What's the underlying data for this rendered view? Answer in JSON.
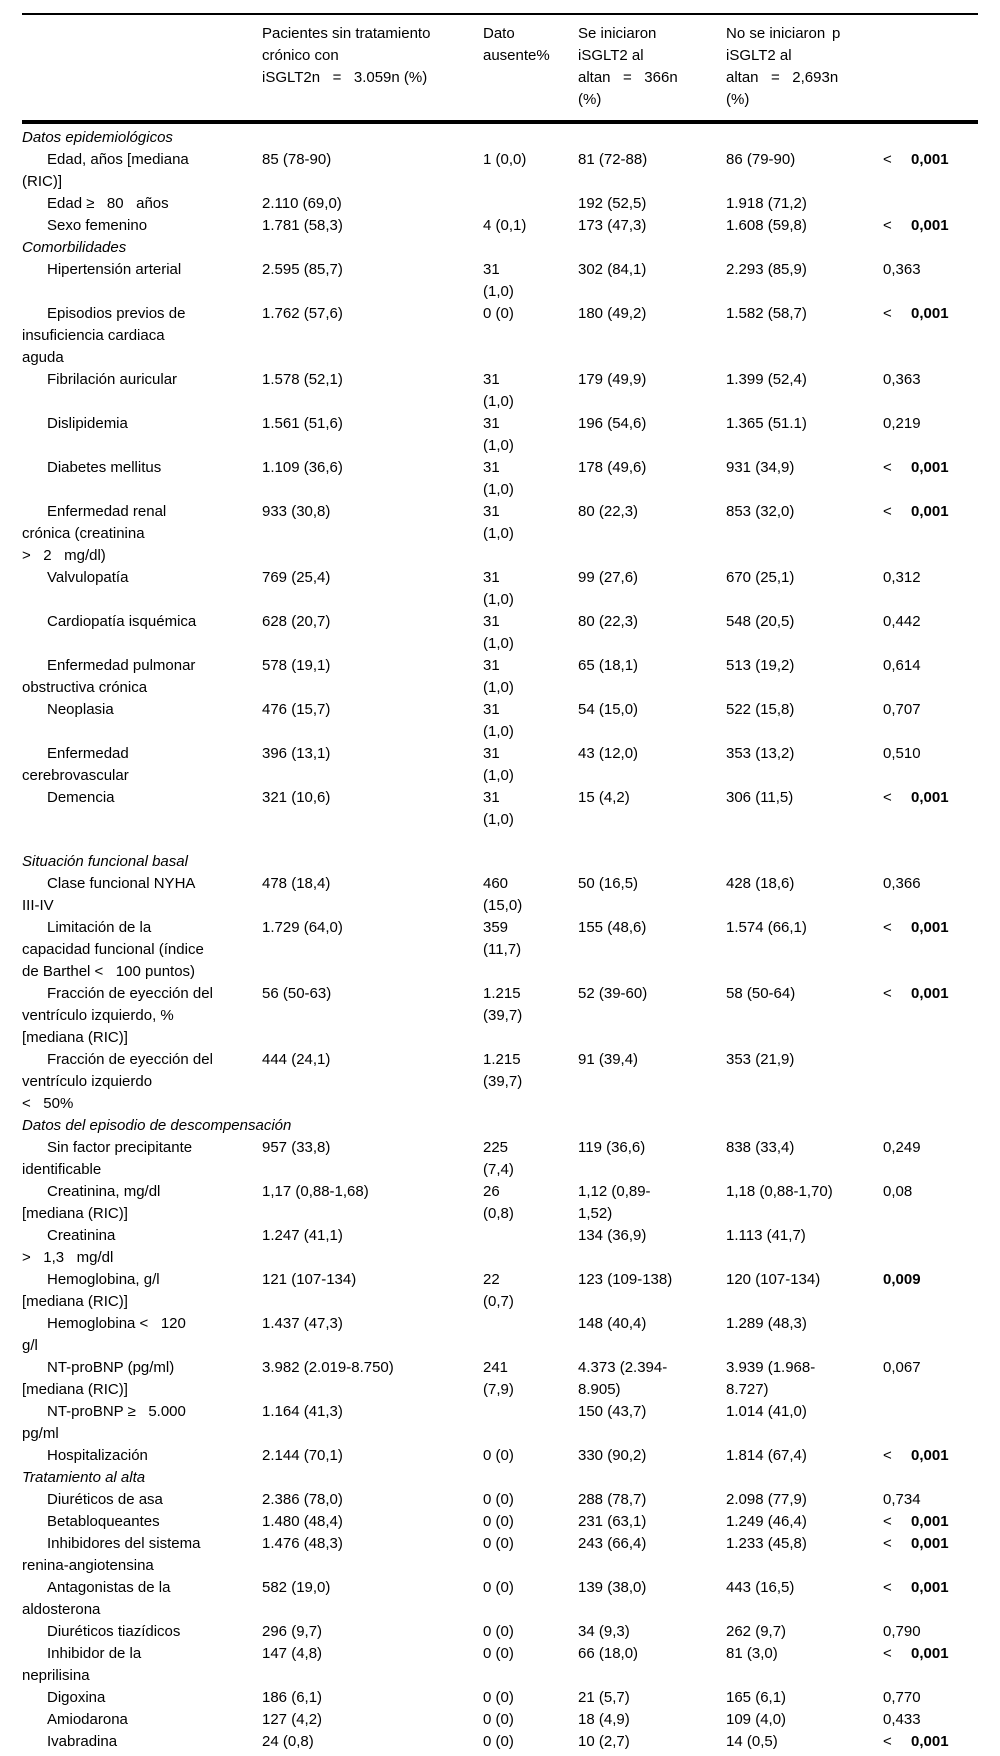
{
  "table": {
    "columns": [
      {
        "id": "label",
        "text": ""
      },
      {
        "id": "no-chronic-isglt2",
        "text": "Pacientes sin tratamiento\ncrónico con\niSGLT2n   =   3.059n (%)"
      },
      {
        "id": "missing-data",
        "text": "Dato\nausente%"
      },
      {
        "id": "initiated-isglt2",
        "text": "Se iniciaron\niSGLT2 al\naltan   =   366n\n(%)"
      },
      {
        "id": "not-initiated-isglt2",
        "text": "No se iniciaron\niSGLT2 al\naltan   =   2,693n\n(%)"
      },
      {
        "id": "p",
        "text": "p"
      }
    ],
    "rows": [
      {
        "type": "section",
        "label": "Datos epidemiológicos"
      },
      {
        "type": "data",
        "label": "Edad, años [mediana\n(RIC)]",
        "cells": [
          "85 (78-90)",
          "1 (0,0)",
          "81 (72-88)",
          "86 (79-90)"
        ],
        "p": {
          "prefix": "<",
          "value": "0,001",
          "bold": true
        }
      },
      {
        "type": "data",
        "label": "Edad ≥   80   años",
        "cells": [
          "2.110 (69,0)",
          "",
          "192 (52,5)",
          "1.918 (71,2)"
        ],
        "p": null
      },
      {
        "type": "data",
        "label": "Sexo femenino",
        "cells": [
          "1.781 (58,3)",
          "4 (0,1)",
          "173 (47,3)",
          "1.608 (59,8)"
        ],
        "p": {
          "prefix": "<",
          "value": "0,001",
          "bold": true
        }
      },
      {
        "type": "section",
        "label": "Comorbilidades"
      },
      {
        "type": "data",
        "label": "Hipertensión arterial",
        "cells": [
          "2.595 (85,7)",
          "31\n(1,0)",
          "302 (84,1)",
          "2.293 (85,9)"
        ],
        "p": {
          "prefix": "",
          "value": "0,363",
          "bold": false
        }
      },
      {
        "type": "data",
        "label": "Episodios previos de\ninsuficiencia cardiaca\naguda",
        "cells": [
          "1.762 (57,6)",
          "0 (0)",
          "180 (49,2)",
          "1.582 (58,7)"
        ],
        "p": {
          "prefix": "<",
          "value": "0,001",
          "bold": true
        }
      },
      {
        "type": "data",
        "label": "Fibrilación auricular",
        "cells": [
          "1.578 (52,1)",
          "31\n(1,0)",
          "179 (49,9)",
          "1.399 (52,4)"
        ],
        "p": {
          "prefix": "",
          "value": "0,363",
          "bold": false
        }
      },
      {
        "type": "data",
        "label": "Dislipidemia",
        "cells": [
          "1.561 (51,6)",
          "31\n(1,0)",
          "196 (54,6)",
          "1.365 (51.1)"
        ],
        "p": {
          "prefix": "",
          "value": "0,219",
          "bold": false
        }
      },
      {
        "type": "data",
        "label": "Diabetes mellitus",
        "cells": [
          "1.109 (36,6)",
          "31\n(1,0)",
          "178 (49,6)",
          "931 (34,9)"
        ],
        "p": {
          "prefix": "<",
          "value": "0,001",
          "bold": true
        }
      },
      {
        "type": "data",
        "label": "Enfermedad renal\ncrónica (creatinina\n>   2   mg/dl)",
        "cells": [
          "933 (30,8)",
          "31\n(1,0)",
          "80 (22,3)",
          "853 (32,0)"
        ],
        "p": {
          "prefix": "<",
          "value": "0,001",
          "bold": true
        }
      },
      {
        "type": "data",
        "label": "Valvulopatía",
        "cells": [
          "769 (25,4)",
          "31\n(1,0)",
          "99 (27,6)",
          "670 (25,1)"
        ],
        "p": {
          "prefix": "",
          "value": "0,312",
          "bold": false
        }
      },
      {
        "type": "data",
        "label": "Cardiopatía isquémica",
        "cells": [
          "628 (20,7)",
          "31\n(1,0)",
          "80 (22,3)",
          "548 (20,5)"
        ],
        "p": {
          "prefix": "",
          "value": "0,442",
          "bold": false
        }
      },
      {
        "type": "data",
        "label": "Enfermedad pulmonar\nobstructiva crónica",
        "cells": [
          "578 (19,1)",
          "31\n(1,0)",
          "65 (18,1)",
          "513 (19,2)"
        ],
        "p": {
          "prefix": "",
          "value": "0,614",
          "bold": false
        }
      },
      {
        "type": "data",
        "label": "Neoplasia",
        "cells": [
          "476 (15,7)",
          "31\n(1,0)",
          "54 (15,0)",
          "522 (15,8)"
        ],
        "p": {
          "prefix": "",
          "value": "0,707",
          "bold": false
        }
      },
      {
        "type": "data",
        "label": "Enfermedad\ncerebrovascular",
        "cells": [
          "396 (13,1)",
          "31\n(1,0)",
          "43 (12,0)",
          "353 (13,2)"
        ],
        "p": {
          "prefix": "",
          "value": "0,510",
          "bold": false
        }
      },
      {
        "type": "data",
        "label": "Demencia",
        "cells": [
          "321 (10,6)",
          "31\n(1,0)",
          "15 (4,2)",
          "306 (11,5)"
        ],
        "p": {
          "prefix": "<",
          "value": "0,001",
          "bold": true
        }
      },
      {
        "type": "section",
        "label": "Situación funcional basal",
        "gap_before": true
      },
      {
        "type": "data",
        "label": "Clase funcional NYHA\nIII-IV",
        "cells": [
          "478 (18,4)",
          "460\n(15,0)",
          "50 (16,5)",
          "428 (18,6)"
        ],
        "p": {
          "prefix": "",
          "value": "0,366",
          "bold": false
        }
      },
      {
        "type": "data",
        "label": "Limitación de la\ncapacidad funcional (índice\nde Barthel <   100 puntos)",
        "cells": [
          "1.729 (64,0)",
          "359\n(11,7)",
          "155 (48,6)",
          "1.574 (66,1)"
        ],
        "p": {
          "prefix": "<",
          "value": "0,001",
          "bold": true
        }
      },
      {
        "type": "data",
        "label": "Fracción de eyección del\nventrículo izquierdo, %\n[mediana (RIC)]",
        "cells": [
          "56 (50-63)",
          "1.215\n(39,7)",
          "52 (39-60)",
          "58 (50-64)"
        ],
        "p": {
          "prefix": "<",
          "value": "0,001",
          "bold": true
        }
      },
      {
        "type": "data",
        "label": "Fracción de eyección del\nventrículo izquierdo\n<   50%",
        "cells": [
          "444 (24,1)",
          "1.215\n(39,7)",
          "91 (39,4)",
          "353 (21,9)"
        ],
        "p": null
      },
      {
        "type": "section",
        "label": "Datos del episodio de descompensación"
      },
      {
        "type": "data",
        "label": "Sin factor precipitante\nidentificable",
        "cells": [
          "957 (33,8)",
          "225\n(7,4)",
          "119 (36,6)",
          "838 (33,4)"
        ],
        "p": {
          "prefix": "",
          "value": "0,249",
          "bold": false
        }
      },
      {
        "type": "data",
        "label": "Creatinina, mg/dl\n[mediana (RIC)]",
        "cells": [
          "1,17 (0,88-1,68)",
          "26\n(0,8)",
          "1,12 (0,89-\n1,52)",
          "1,18 (0,88-1,70)"
        ],
        "p": {
          "prefix": "",
          "value": "0,08",
          "bold": false
        }
      },
      {
        "type": "data",
        "label": "Creatinina\n>   1,3   mg/dl",
        "cells": [
          "1.247 (41,1)",
          "",
          "134 (36,9)",
          "1.113 (41,7)"
        ],
        "p": null
      },
      {
        "type": "data",
        "label": "Hemoglobina, g/l\n[mediana (RIC)]",
        "cells": [
          "121 (107-134)",
          "22\n(0,7)",
          "123 (109-138)",
          "120 (107-134)"
        ],
        "p": {
          "prefix": "",
          "value": "0,009",
          "bold": true
        }
      },
      {
        "type": "data",
        "label": "Hemoglobina <   120\ng/l",
        "cells": [
          "1.437 (47,3)",
          "",
          "148 (40,4)",
          "1.289 (48,3)"
        ],
        "p": null
      },
      {
        "type": "data",
        "label": "NT-proBNP (pg/ml)\n[mediana (RIC)]",
        "cells": [
          "3.982 (2.019-8.750)",
          "241\n(7,9)",
          "4.373 (2.394-\n8.905)",
          "3.939 (1.968-\n8.727)"
        ],
        "p": {
          "prefix": "",
          "value": "0,067",
          "bold": false
        }
      },
      {
        "type": "data",
        "label": "NT-proBNP ≥   5.000\npg/ml",
        "cells": [
          "1.164 (41,3)",
          "",
          "150 (43,7)",
          "1.014 (41,0)"
        ],
        "p": null
      },
      {
        "type": "data",
        "label": "Hospitalización",
        "cells": [
          "2.144 (70,1)",
          "0 (0)",
          "330 (90,2)",
          "1.814 (67,4)"
        ],
        "p": {
          "prefix": "<",
          "value": "0,001",
          "bold": true
        }
      },
      {
        "type": "section",
        "label": "Tratamiento al alta"
      },
      {
        "type": "data",
        "label": "Diuréticos de asa",
        "cells": [
          "2.386 (78,0)",
          "0 (0)",
          "288 (78,7)",
          "2.098 (77,9)"
        ],
        "p": {
          "prefix": "",
          "value": "0,734",
          "bold": false
        }
      },
      {
        "type": "data",
        "label": "Betabloqueantes",
        "cells": [
          "1.480 (48,4)",
          "0 (0)",
          "231 (63,1)",
          "1.249 (46,4)"
        ],
        "p": {
          "prefix": "<",
          "value": "0,001",
          "bold": true
        }
      },
      {
        "type": "data",
        "label": "Inhibidores del sistema\nrenina-angiotensina",
        "cells": [
          "1.476 (48,3)",
          "0 (0)",
          "243 (66,4)",
          "1.233 (45,8)"
        ],
        "p": {
          "prefix": "<",
          "value": "0,001",
          "bold": true
        }
      },
      {
        "type": "data",
        "label": "Antagonistas de la\naldosterona",
        "cells": [
          "582 (19,0)",
          "0 (0)",
          "139 (38,0)",
          "443 (16,5)"
        ],
        "p": {
          "prefix": "<",
          "value": "0,001",
          "bold": true
        }
      },
      {
        "type": "data",
        "label": "Diuréticos tiazídicos",
        "cells": [
          "296 (9,7)",
          "0 (0)",
          "34 (9,3)",
          "262 (9,7)"
        ],
        "p": {
          "prefix": "",
          "value": "0,790",
          "bold": false
        }
      },
      {
        "type": "data",
        "label": "Inhibidor de la\nneprilisina",
        "cells": [
          "147 (4,8)",
          "0 (0)",
          "66 (18,0)",
          "81 (3,0)"
        ],
        "p": {
          "prefix": "<",
          "value": "0,001",
          "bold": true
        }
      },
      {
        "type": "data",
        "label": "Digoxina",
        "cells": [
          "186 (6,1)",
          "0 (0)",
          "21 (5,7)",
          "165 (6,1)"
        ],
        "p": {
          "prefix": "",
          "value": "0,770",
          "bold": false
        }
      },
      {
        "type": "data",
        "label": "Amiodarona",
        "cells": [
          "127 (4,2)",
          "0 (0)",
          "18 (4,9)",
          "109 (4,0)"
        ],
        "p": {
          "prefix": "",
          "value": "0,433",
          "bold": false
        }
      },
      {
        "type": "data",
        "label": "Ivabradina",
        "cells": [
          "24 (0,8)",
          "0 (0)",
          "10 (2,7)",
          "14 (0,5)"
        ],
        "p": {
          "prefix": "<",
          "value": "0,001",
          "bold": true
        }
      }
    ]
  }
}
